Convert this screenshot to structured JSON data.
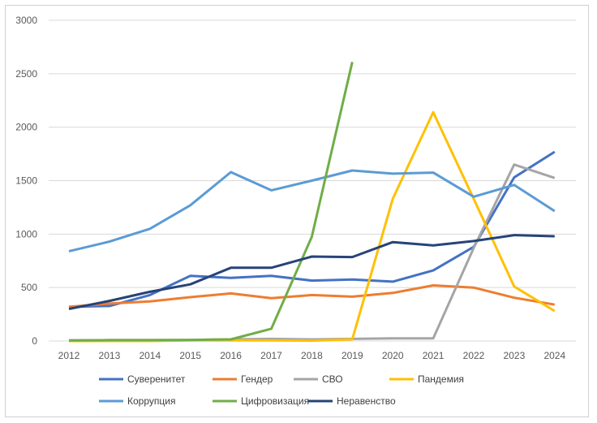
{
  "chart_data": {
    "type": "line",
    "title": "",
    "xlabel": "",
    "ylabel": "",
    "x": [
      2012,
      2013,
      2014,
      2015,
      2016,
      2017,
      2018,
      2019,
      2020,
      2021,
      2022,
      2023,
      2024
    ],
    "ylim": [
      0,
      3000
    ],
    "yticks": [
      0,
      500,
      1000,
      1500,
      2000,
      2500,
      3000
    ],
    "grid": true,
    "legend_position": "bottom",
    "series": [
      {
        "name": "Суверенитет",
        "color": "#4472C4",
        "values": [
          320,
          327,
          430,
          610,
          590,
          610,
          565,
          575,
          555,
          660,
          880,
          1530,
          1770
        ]
      },
      {
        "name": "Гендер",
        "color": "#ED7D31",
        "values": [
          320,
          350,
          370,
          410,
          445,
          400,
          430,
          415,
          450,
          520,
          500,
          405,
          340
        ]
      },
      {
        "name": "СВО",
        "color": "#A5A5A5",
        "values": [
          5,
          8,
          8,
          10,
          15,
          20,
          15,
          20,
          25,
          25,
          870,
          1650,
          1525
        ]
      },
      {
        "name": "Пандемия",
        "color": "#FFC000",
        "values": [
          0,
          0,
          0,
          5,
          5,
          5,
          3,
          15,
          1330,
          2140,
          1330,
          510,
          280
        ]
      },
      {
        "name": "Коррупция",
        "color": "#5B9BD5",
        "values": [
          840,
          930,
          1050,
          1270,
          1580,
          1410,
          1500,
          1595,
          1565,
          1575,
          1350,
          1460,
          1215
        ]
      },
      {
        "name": "Цифровизация",
        "color": "#70AD47",
        "values": [
          5,
          8,
          8,
          10,
          15,
          115,
          975,
          2610,
          null,
          null,
          null,
          null,
          null
        ]
      },
      {
        "name": "Неравенство",
        "color": "#264478",
        "values": [
          300,
          375,
          460,
          530,
          685,
          685,
          790,
          785,
          925,
          895,
          935,
          990,
          980
        ]
      }
    ]
  }
}
